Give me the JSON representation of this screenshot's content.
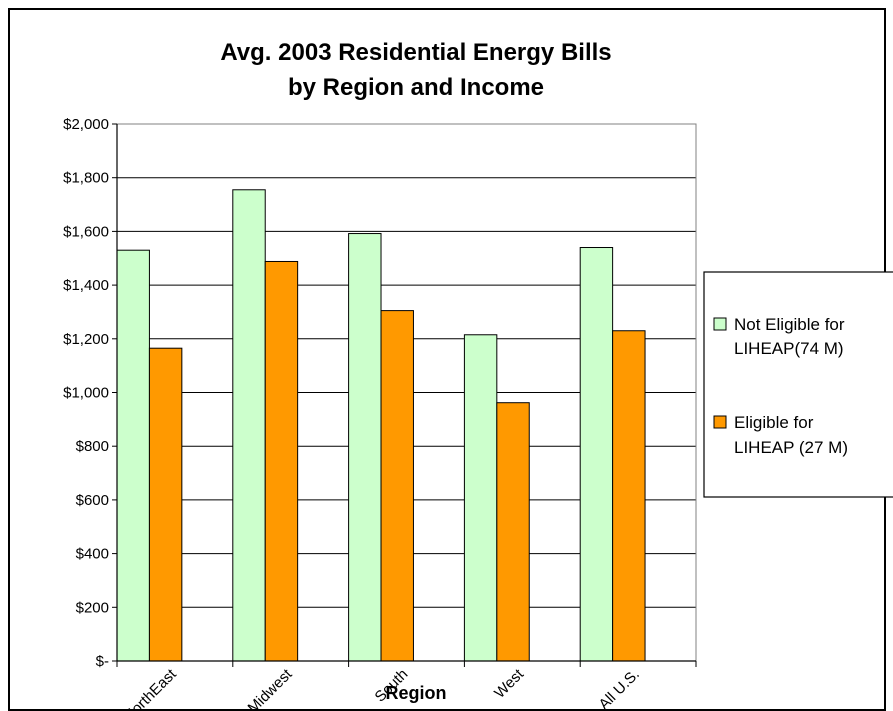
{
  "chart_data": {
    "type": "bar",
    "title_line1": "Avg. 2003 Residential Energy Bills",
    "title_line2": "by Region and Income",
    "xlabel": "Region",
    "ylabel": "",
    "ylim": [
      0,
      2000
    ],
    "ytick_values": [
      0,
      200,
      400,
      600,
      800,
      1000,
      1200,
      1400,
      1600,
      1800,
      2000
    ],
    "ytick_labels": [
      "$-",
      "$200",
      "$400",
      "$600",
      "$800",
      "$1,000",
      "$1,200",
      "$1,400",
      "$1,600",
      "$1,800",
      "$2,000"
    ],
    "categories": [
      "NorthEast",
      "Midwest",
      "South",
      "West",
      "All U.S."
    ],
    "grid": true,
    "legend_position": "right",
    "series": [
      {
        "name_line1": "Not Eligible for",
        "name_line2": "LIHEAP(74 M)",
        "color": "#ccffcc",
        "values": [
          1530,
          1755,
          1592,
          1215,
          1540
        ]
      },
      {
        "name_line1": "Eligible for",
        "name_line2": "LIHEAP (27 M)",
        "color": "#ff9900",
        "values": [
          1165,
          1488,
          1305,
          962,
          1230
        ]
      }
    ]
  }
}
